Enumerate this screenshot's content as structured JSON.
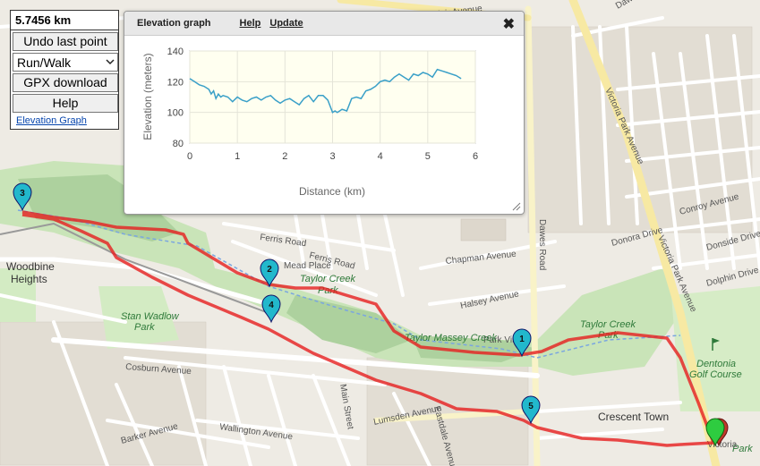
{
  "panel": {
    "distance": "5.7456 km",
    "undo_label": "Undo last point",
    "mode_value": "Run/Walk",
    "gpx_label": "GPX download",
    "help_label": "Help",
    "elevation_link": "Elevation Graph"
  },
  "elevation_window": {
    "title": "Elevation graph",
    "help_link": "Help",
    "update_link": "Update",
    "close_glyph": "✖"
  },
  "chart_data": {
    "type": "line",
    "xlabel": "Distance (km)",
    "ylabel": "Elevation (meters)",
    "xlim": [
      0,
      6
    ],
    "ylim": [
      80,
      140
    ],
    "x_ticks": [
      0,
      1,
      2,
      3,
      4,
      5,
      6
    ],
    "y_ticks": [
      80,
      100,
      120,
      140
    ],
    "grid": true,
    "x": [
      0,
      0.1,
      0.2,
      0.3,
      0.4,
      0.45,
      0.5,
      0.55,
      0.6,
      0.65,
      0.7,
      0.8,
      0.9,
      1.0,
      1.05,
      1.1,
      1.2,
      1.3,
      1.4,
      1.5,
      1.6,
      1.7,
      1.8,
      1.9,
      2.0,
      2.1,
      2.2,
      2.3,
      2.4,
      2.5,
      2.6,
      2.7,
      2.8,
      2.9,
      3.0,
      3.05,
      3.1,
      3.15,
      3.2,
      3.3,
      3.4,
      3.5,
      3.6,
      3.7,
      3.8,
      3.9,
      4.0,
      4.1,
      4.2,
      4.3,
      4.4,
      4.5,
      4.6,
      4.7,
      4.8,
      4.9,
      5.0,
      5.1,
      5.2,
      5.3,
      5.4,
      5.5,
      5.6,
      5.7
    ],
    "values": [
      122,
      120,
      118,
      117,
      115,
      112,
      114,
      109,
      112,
      110,
      111,
      110,
      107,
      110,
      109,
      108,
      107,
      109,
      110,
      108,
      110,
      111,
      108,
      106,
      108,
      109,
      107,
      105,
      109,
      111,
      107,
      111,
      111,
      108,
      100,
      101,
      100,
      101,
      102,
      101,
      109,
      110,
      109,
      114,
      115,
      117,
      120,
      121,
      120,
      123,
      125,
      123,
      121,
      125,
      124,
      126,
      125,
      123,
      128,
      127,
      126,
      125,
      124,
      122
    ]
  }
}
